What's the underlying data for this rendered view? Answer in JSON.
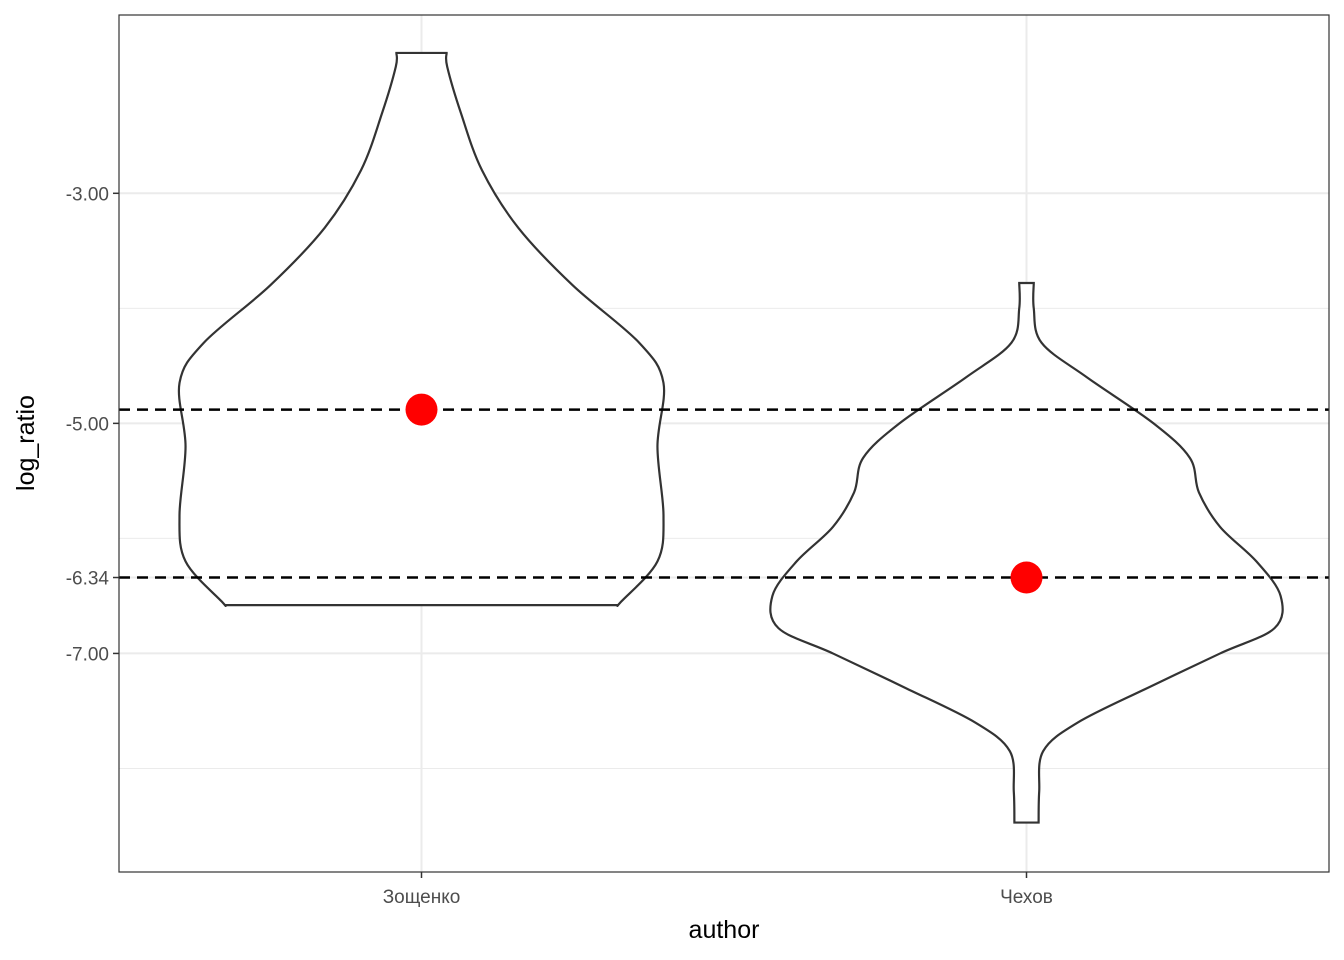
{
  "chart_data": {
    "type": "violin",
    "xlabel": "author",
    "ylabel": "log_ratio",
    "categories": [
      "Зощенко",
      "Чехов"
    ],
    "ylim": [
      -8.9,
      -1.45
    ],
    "y_ticks": [
      {
        "value": -3.0,
        "label": "-3.00"
      },
      {
        "value": -5.0,
        "label": "-5.00"
      },
      {
        "value": -6.34,
        "label": "-6.34"
      },
      {
        "value": -7.0,
        "label": "-7.00"
      }
    ],
    "minor_grid": [
      -4.0,
      -6.0,
      -8.0
    ],
    "reference_lines": [
      {
        "value": -4.88,
        "style": "dashed",
        "color": "#000000"
      },
      {
        "value": -6.34,
        "style": "dashed",
        "color": "#000000"
      }
    ],
    "points": [
      {
        "category": "Зощенко",
        "value": -4.88,
        "color": "#ff0000"
      },
      {
        "category": "Чехов",
        "value": -6.34,
        "color": "#ff0000"
      }
    ],
    "violins": [
      {
        "category": "Зощенко",
        "outline_color": "#333333",
        "profile": [
          [
            -1.78,
            0.083
          ],
          [
            -1.9,
            0.085
          ],
          [
            -2.3,
            0.13
          ],
          [
            -2.8,
            0.2
          ],
          [
            -3.3,
            0.32
          ],
          [
            -3.8,
            0.5
          ],
          [
            -4.3,
            0.72
          ],
          [
            -4.65,
            0.8
          ],
          [
            -5.2,
            0.78
          ],
          [
            -5.8,
            0.8
          ],
          [
            -6.2,
            0.78
          ],
          [
            -6.55,
            0.66
          ],
          [
            -6.58,
            0.65
          ]
        ]
      },
      {
        "category": "Чехов",
        "outline_color": "#333333",
        "profile": [
          [
            -3.78,
            0.024
          ],
          [
            -4.0,
            0.024
          ],
          [
            -4.3,
            0.05
          ],
          [
            -4.6,
            0.2
          ],
          [
            -5.0,
            0.42
          ],
          [
            -5.3,
            0.54
          ],
          [
            -5.6,
            0.57
          ],
          [
            -5.9,
            0.64
          ],
          [
            -6.2,
            0.76
          ],
          [
            -6.5,
            0.84
          ],
          [
            -6.78,
            0.82
          ],
          [
            -7.0,
            0.64
          ],
          [
            -7.3,
            0.4
          ],
          [
            -7.6,
            0.17
          ],
          [
            -7.85,
            0.055
          ],
          [
            -8.2,
            0.042
          ],
          [
            -8.47,
            0.04
          ]
        ]
      }
    ]
  }
}
